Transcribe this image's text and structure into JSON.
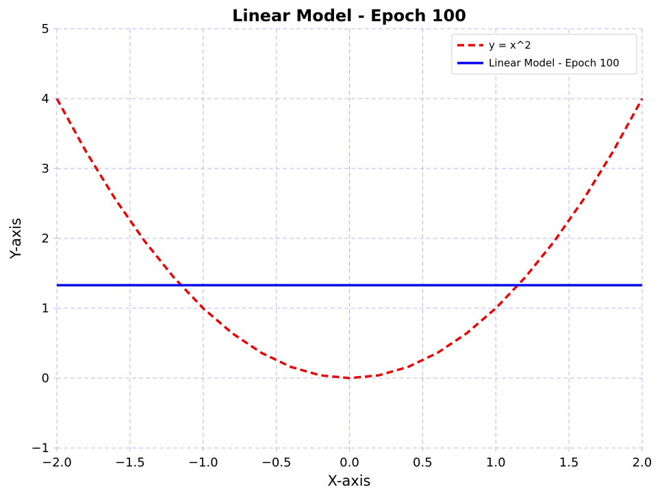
{
  "chart_data": {
    "type": "line",
    "title": "Linear Model - Epoch 100",
    "xlabel": "X-axis",
    "ylabel": "Y-axis",
    "xlim": [
      -2.0,
      2.0
    ],
    "ylim": [
      -1,
      5
    ],
    "x_ticks": [
      -2.0,
      -1.5,
      -1.0,
      -0.5,
      0.0,
      0.5,
      1.0,
      1.5,
      2.0
    ],
    "x_tick_labels": [
      "−2.0",
      "−1.5",
      "−1.0",
      "−0.5",
      "0.0",
      "0.5",
      "1.0",
      "1.5",
      "2.0"
    ],
    "y_ticks": [
      -1,
      0,
      1,
      2,
      3,
      4,
      5
    ],
    "y_tick_labels": [
      "−1",
      "0",
      "1",
      "2",
      "3",
      "4",
      "5"
    ],
    "grid": true,
    "grid_color": "#b4b4f5",
    "legend_position": "top-right",
    "series": [
      {
        "name": "y = x^2",
        "style": "dashed",
        "color": "#ee0000",
        "x": [
          -2.0,
          -1.8,
          -1.6,
          -1.4,
          -1.2,
          -1.0,
          -0.8,
          -0.6,
          -0.4,
          -0.2,
          0.0,
          0.2,
          0.4,
          0.6,
          0.8,
          1.0,
          1.2,
          1.4,
          1.6,
          1.8,
          2.0
        ],
        "y": [
          4.0,
          3.24,
          2.56,
          1.96,
          1.44,
          1.0,
          0.64,
          0.36,
          0.16,
          0.04,
          0.0,
          0.04,
          0.16,
          0.36,
          0.64,
          1.0,
          1.44,
          1.96,
          2.56,
          3.24,
          4.0
        ]
      },
      {
        "name": "Linear Model - Epoch 100",
        "style": "solid",
        "color": "#0000ee",
        "x": [
          -2.0,
          2.0
        ],
        "y": [
          1.33,
          1.33
        ]
      }
    ]
  }
}
